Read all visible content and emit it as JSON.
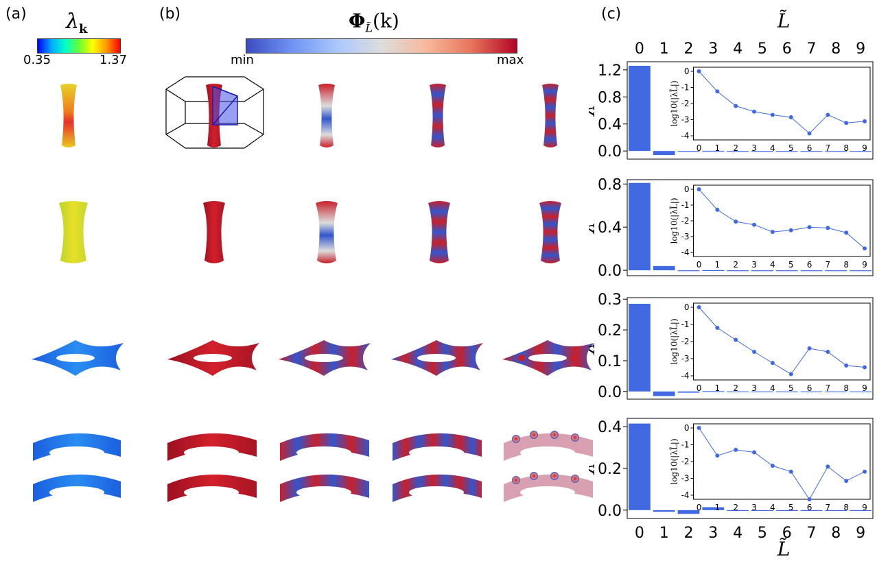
{
  "panels": {
    "a": "(a)",
    "b": "(b)",
    "c": "(c)"
  },
  "colorbar_a": {
    "label_main": "λ",
    "label_sub": "k",
    "min": "0.35",
    "max": "1.37"
  },
  "colorbar_b": {
    "label_main": "Φ",
    "label_sub": "L̃",
    "label_arg": "(k)",
    "min": "min",
    "max": "max"
  },
  "colors": {
    "red": "#c8202a",
    "blue": "#3355cc",
    "bar": "#4169e1"
  },
  "axis_title": "L̃",
  "chart_data": [
    {
      "type": "bar",
      "categories": [
        "0",
        "1",
        "2",
        "3",
        "4",
        "5",
        "6",
        "7",
        "8",
        "9"
      ],
      "values": [
        1.26,
        -0.06,
        -0.005,
        0.003,
        0.0,
        0.0,
        0.0,
        0.0,
        0.0,
        0.0
      ],
      "ylim": [
        -0.12,
        1.32
      ],
      "yticks": [
        "0.0",
        "0.4",
        "0.8",
        "1.2"
      ],
      "ytick_values": [
        0.0,
        0.4,
        0.8,
        1.2
      ],
      "inset": {
        "ylabel": "log10(|λL̃|)",
        "x": [
          0,
          1,
          2,
          3,
          4,
          5,
          6,
          7,
          8,
          9
        ],
        "y": [
          0,
          -1.25,
          -2.15,
          -2.5,
          -2.7,
          -2.85,
          -3.85,
          -2.7,
          -3.2,
          -3.1
        ],
        "yticks": [
          "0",
          "-1",
          "-2",
          "-3",
          "-4"
        ],
        "ylim": [
          -4,
          0
        ]
      }
    },
    {
      "type": "bar",
      "categories": [
        "0",
        "1",
        "2",
        "3",
        "4",
        "5",
        "6",
        "7",
        "8",
        "9"
      ],
      "values": [
        0.81,
        0.04,
        -0.004,
        0.002,
        0.0,
        0.0,
        0.0,
        0.0,
        0.0,
        0.0
      ],
      "ylim": [
        -0.05,
        0.84
      ],
      "yticks": [
        "0.0",
        "0.4",
        "0.8"
      ],
      "ytick_values": [
        0.0,
        0.4,
        0.8
      ],
      "inset": {
        "ylabel": "log10(|λL̃|)",
        "x": [
          0,
          1,
          2,
          3,
          4,
          5,
          6,
          7,
          8,
          9
        ],
        "y": [
          0,
          -1.3,
          -2.05,
          -2.25,
          -2.7,
          -2.6,
          -2.4,
          -2.45,
          -2.75,
          -3.75
        ],
        "yticks": [
          "0",
          "-1",
          "-2",
          "-3",
          "-4"
        ],
        "ylim": [
          -4,
          0
        ]
      }
    },
    {
      "type": "bar",
      "categories": [
        "0",
        "1",
        "2",
        "3",
        "4",
        "5",
        "6",
        "7",
        "8",
        "9"
      ],
      "values": [
        0.285,
        -0.015,
        -0.004,
        0.001,
        0.0,
        0.0,
        0.0,
        0.0,
        0.0,
        0.0
      ],
      "ylim": [
        -0.025,
        0.305
      ],
      "yticks": [
        "0.0",
        "0.1",
        "0.2",
        "0.3"
      ],
      "ytick_values": [
        0.0,
        0.1,
        0.2,
        0.3
      ],
      "inset": {
        "ylabel": "log10(|λL̃|)",
        "x": [
          0,
          1,
          2,
          3,
          4,
          5,
          6,
          7,
          8,
          9
        ],
        "y": [
          0,
          -1.2,
          -1.9,
          -2.6,
          -3.25,
          -3.9,
          -2.4,
          -2.6,
          -3.4,
          -3.5
        ],
        "yticks": [
          "0",
          "-1",
          "-2",
          "-3",
          "-4"
        ],
        "ylim": [
          -4,
          0
        ]
      }
    },
    {
      "type": "bar",
      "categories": [
        "0",
        "1",
        "2",
        "3",
        "4",
        "5",
        "6",
        "7",
        "8",
        "9"
      ],
      "values": [
        0.415,
        -0.008,
        -0.018,
        0.014,
        0.0,
        0.0,
        0.0,
        0.0,
        0.0,
        0.0
      ],
      "ylim": [
        -0.04,
        0.44
      ],
      "yticks": [
        "0.0",
        "0.2",
        "0.4"
      ],
      "ytick_values": [
        0.0,
        0.2,
        0.4
      ],
      "inset": {
        "ylabel": "log10(|λL̃|)",
        "x": [
          0,
          1,
          2,
          3,
          4,
          5,
          6,
          7,
          8,
          9
        ],
        "y": [
          0,
          -1.65,
          -1.3,
          -1.45,
          -2.25,
          -2.6,
          -4.25,
          -2.3,
          -3.15,
          -2.6
        ],
        "yticks": [
          "0",
          "-1",
          "-2",
          "-3",
          "-4"
        ],
        "ylim": [
          -4,
          0
        ]
      }
    }
  ]
}
